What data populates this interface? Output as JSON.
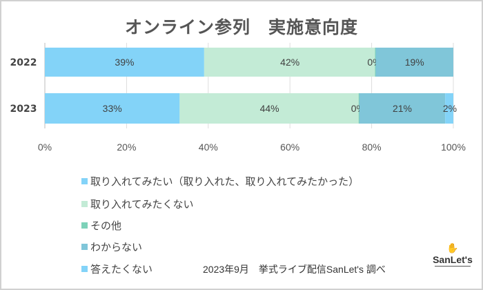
{
  "chart_data": {
    "type": "bar",
    "orientation": "horizontal",
    "stacked": "percent",
    "title": "オンライン参列　実施意向度",
    "categories": [
      "2022",
      "2023"
    ],
    "series": [
      {
        "name": "取り入れてみたい（取り入れた、取り入れてみたかった）",
        "color": "#83d3f8",
        "values": [
          39,
          33
        ]
      },
      {
        "name": "取り入れてみたくない",
        "color": "#c3ebd6",
        "values": [
          42,
          44
        ]
      },
      {
        "name": "その他",
        "color": "#7dd2b9",
        "values": [
          0,
          0
        ]
      },
      {
        "name": "わからない",
        "color": "#80c6d9",
        "values": [
          19,
          21
        ]
      },
      {
        "name": "答えたくない",
        "color": "#83d3f8",
        "values": [
          0,
          2
        ]
      }
    ],
    "data_labels": [
      [
        "39%",
        "42%",
        "0%",
        "19%",
        ""
      ],
      [
        "33%",
        "44%",
        "0%",
        "21%",
        "2%"
      ]
    ],
    "xlim": [
      0,
      100
    ],
    "x_ticks": [
      "0%",
      "20%",
      "40%",
      "60%",
      "80%",
      "100%"
    ],
    "grid": true,
    "legend_position": "bottom"
  },
  "source": "2023年9月　挙式ライブ配信SanLet's 調べ",
  "logo": "SanLet's"
}
